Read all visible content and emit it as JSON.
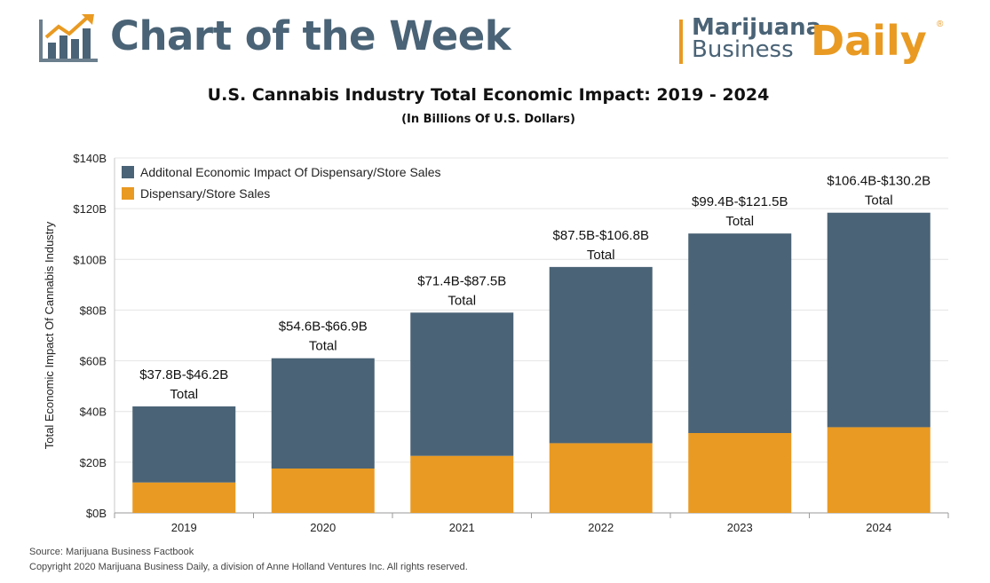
{
  "header": {
    "title": "Chart of the Week",
    "brand_line1": "Marijuana",
    "brand_line2": "Business",
    "brand_daily": "Daily",
    "brand_mark": "®"
  },
  "colors": {
    "store_sales": "#e99a22",
    "additional_impact": "#4a6376",
    "title_blue": "#4a6376"
  },
  "chart_data": {
    "type": "bar",
    "stacked": true,
    "title": "U.S. Cannabis Industry Total Economic Impact: 2019 - 2024",
    "subtitle": "(In Billions Of U.S. Dollars)",
    "xlabel": "",
    "ylabel": "Total Economic Impact Of Cannabis Industry",
    "ylim": [
      0,
      140
    ],
    "yticks": [
      "$0B",
      "$20B",
      "$40B",
      "$60B",
      "$80B",
      "$100B",
      "$120B",
      "$140B"
    ],
    "categories": [
      "2019",
      "2020",
      "2021",
      "2022",
      "2023",
      "2024"
    ],
    "series": [
      {
        "name": "Dispensary/Store Sales",
        "values": [
          12,
          17.5,
          22.5,
          27.5,
          31.5,
          33.8
        ]
      },
      {
        "name": "Additonal Economic Impact Of Dispensary/Store Sales",
        "values": [
          30,
          43.5,
          56.5,
          69.5,
          78.7,
          84.6
        ]
      }
    ],
    "annotations": [
      {
        "range": "$37.8B-$46.2B",
        "label": "Total"
      },
      {
        "range": "$54.6B-$66.9B",
        "label": "Total"
      },
      {
        "range": "$71.4B-$87.5B",
        "label": "Total"
      },
      {
        "range": "$87.5B-$106.8B",
        "label": "Total"
      },
      {
        "range": "$99.4B-$121.5B",
        "label": "Total"
      },
      {
        "range": "$106.4B-$130.2B",
        "label": "Total"
      }
    ],
    "legend_position": "top-left",
    "grid": true
  },
  "footer": {
    "source": "Source: Marijuana Business Factbook",
    "copyright": "Copyright 2020 Marijuana Business Daily, a division of Anne Holland Ventures Inc. All rights reserved."
  }
}
